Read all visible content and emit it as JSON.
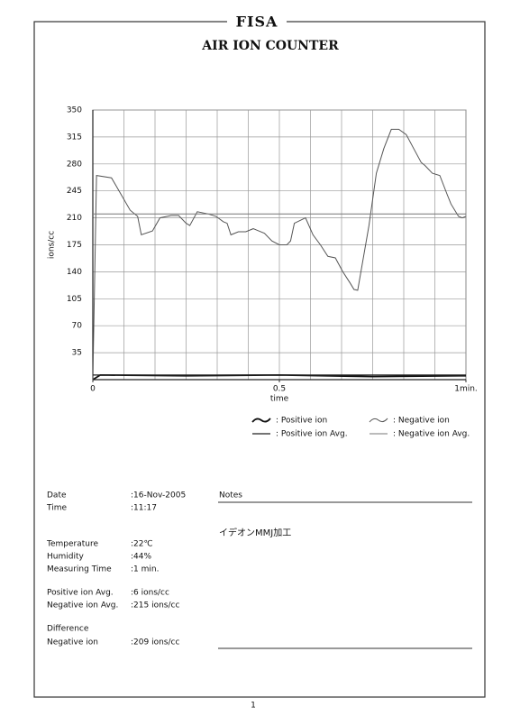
{
  "header": {
    "logo": "FISA",
    "title": "AIR ION COUNTER"
  },
  "chart_data": {
    "type": "line",
    "xlabel": "time",
    "ylabel": "ions/cc",
    "xlim": [
      0,
      1
    ],
    "xticks": [
      0,
      0.5,
      {
        "value": 1,
        "label": "1min."
      }
    ],
    "ylim": [
      0,
      350
    ],
    "yticks": [
      35,
      70,
      105,
      140,
      175,
      210,
      245,
      280,
      315,
      350
    ],
    "grid": true,
    "grid_x_divisions": 12,
    "series": [
      {
        "name": ": Positive ion",
        "color": "#111111",
        "x": [
          0,
          0.02,
          0.25,
          0.5,
          0.75,
          1
        ],
        "values": [
          0,
          6,
          5,
          6,
          4,
          5
        ]
      },
      {
        "name": ": Negative ion",
        "color": "#555555",
        "x": [
          0,
          0.01,
          0.05,
          0.1,
          0.12,
          0.13,
          0.16,
          0.18,
          0.21,
          0.23,
          0.25,
          0.26,
          0.28,
          0.31,
          0.33,
          0.35,
          0.36,
          0.37,
          0.39,
          0.41,
          0.43,
          0.46,
          0.48,
          0.5,
          0.52,
          0.53,
          0.54,
          0.57,
          0.59,
          0.61,
          0.63,
          0.65,
          0.67,
          0.69,
          0.7,
          0.71,
          0.74,
          0.76,
          0.78,
          0.8,
          0.82,
          0.84,
          0.86,
          0.88,
          0.89,
          0.91,
          0.93,
          0.95,
          0.96,
          0.98,
          0.99,
          1
        ],
        "values": [
          0,
          265,
          262,
          220,
          212,
          188,
          193,
          210,
          213,
          213,
          203,
          200,
          218,
          215,
          212,
          205,
          203,
          188,
          192,
          192,
          196,
          190,
          180,
          175,
          175,
          180,
          203,
          210,
          188,
          175,
          160,
          158,
          140,
          125,
          117,
          116,
          200,
          268,
          300,
          325,
          325,
          318,
          300,
          282,
          278,
          268,
          265,
          240,
          228,
          212,
          210,
          212
        ]
      },
      {
        "name": ": Positive ion Avg.",
        "color": "#222222",
        "x": [
          0,
          1
        ],
        "values": [
          6,
          6
        ]
      },
      {
        "name": ": Negative ion Avg.",
        "color": "#777777",
        "x": [
          0,
          1
        ],
        "values": [
          215,
          215
        ]
      }
    ]
  },
  "info": [
    {
      "label": "Date",
      "value": ":16-Nov-2005"
    },
    {
      "label": "Time",
      "value": ":11:17"
    },
    {
      "label": "Temperature",
      "value": ":22℃"
    },
    {
      "label": "Humidity",
      "value": ":44%"
    },
    {
      "label": "Measuring Time",
      "value": ":1 min."
    },
    {
      "label": "Positive ion Avg.",
      "value": ":6 ions/cc"
    },
    {
      "label": "Negative ion Avg.",
      "value": ":215 ions/cc"
    },
    {
      "label": "Difference"
    },
    {
      "label": "Negative ion",
      "value": ":209 ions/cc"
    }
  ],
  "notes": {
    "heading": "Notes",
    "text": "イデオンMMJ加工"
  },
  "page_number": "1"
}
